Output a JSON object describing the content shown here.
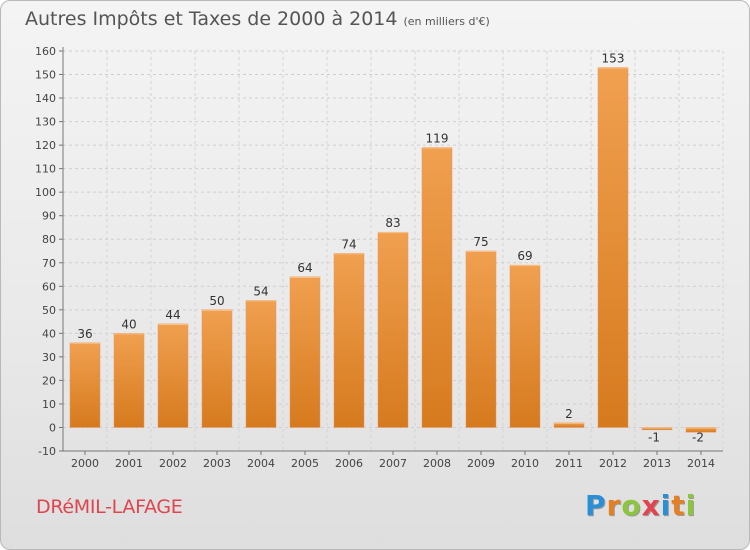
{
  "title": "Autres Impôts et Taxes de 2000 à 2014",
  "unit": "(en milliers d'€)",
  "commune": "DRéMIL-LAFAGE",
  "logo": {
    "letters": [
      "P",
      "r",
      "o",
      "x",
      "i",
      "t",
      "i"
    ],
    "colors": [
      "#2a8fd6",
      "#e67e22",
      "#8cc63f",
      "#e0454f",
      "#2a8fd6",
      "#e67e22",
      "#8cc63f"
    ]
  },
  "chart_data": {
    "type": "bar",
    "categories": [
      "2000",
      "2001",
      "2002",
      "2003",
      "2004",
      "2005",
      "2006",
      "2007",
      "2008",
      "2009",
      "2010",
      "2011",
      "2012",
      "2013",
      "2014"
    ],
    "values": [
      36,
      40,
      44,
      50,
      54,
      64,
      74,
      83,
      119,
      75,
      69,
      2,
      153,
      -1,
      -2
    ],
    "ylim": [
      -10,
      160
    ],
    "yticks": [
      -10,
      0,
      10,
      20,
      30,
      40,
      50,
      60,
      70,
      80,
      90,
      100,
      110,
      120,
      130,
      140,
      150,
      160
    ],
    "grid": true,
    "bar_color": "#f0a050",
    "bar_color_dark": "#d67a1e"
  }
}
